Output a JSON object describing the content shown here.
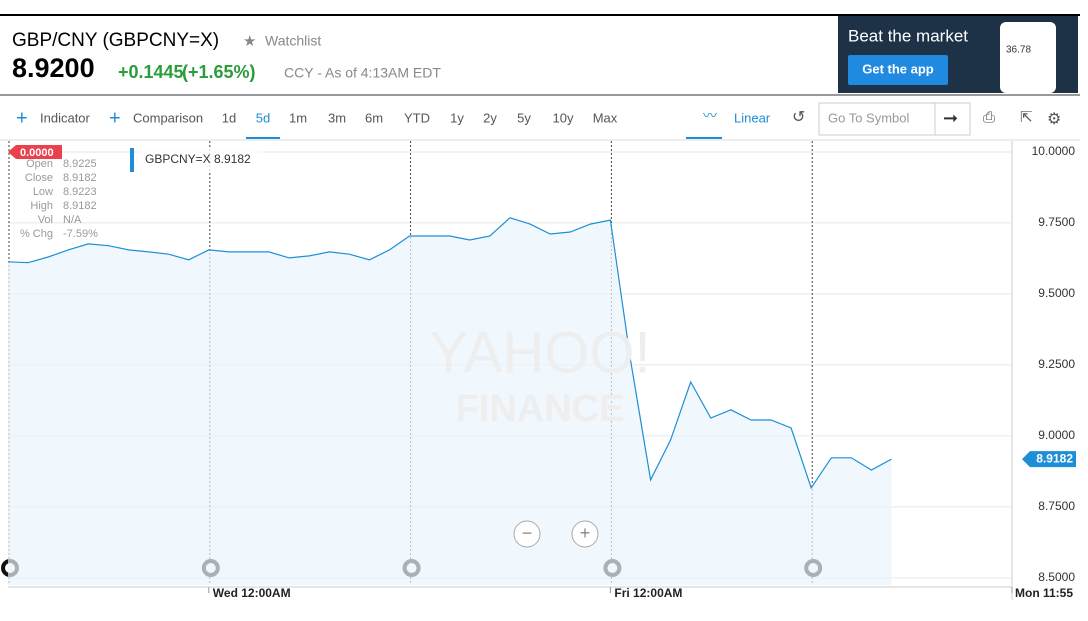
{
  "header": {
    "title": "GBP/CNY (GBPCNY=X)",
    "watchlist": "Watchlist",
    "price": "8.9200",
    "change": "+0.1445",
    "change_pct": "(+1.65%)",
    "meta": "CCY - As of 4:13AM EDT"
  },
  "ad": {
    "headline": "Beat the market",
    "button": "Get the app",
    "phone_value": "36.78"
  },
  "toolbar": {
    "indicator": "Indicator",
    "comparison": "Comparison",
    "ranges": [
      "1d",
      "5d",
      "1m",
      "3m",
      "6m",
      "YTD",
      "1y",
      "2y",
      "5y",
      "10y",
      "Max"
    ],
    "active_range": "5d",
    "scale": "Linear",
    "search_placeholder": "Go To Symbol"
  },
  "crosshair": {
    "tag": "0.0000",
    "labels": [
      "Open",
      "Close",
      "Low",
      "High",
      "Vol",
      "% Chg"
    ],
    "values": [
      "8.9225",
      "8.9182",
      "8.9223",
      "8.9182",
      "N/A",
      "-7.59%"
    ]
  },
  "watermark": [
    "YAHOO!",
    "FINANCE"
  ],
  "chart_data": {
    "type": "line",
    "categories": [
      null,
      null,
      null,
      null,
      null,
      null,
      null,
      null,
      null,
      null,
      "Wed 12:00AM",
      null,
      null,
      null,
      null,
      null,
      null,
      null,
      null,
      null,
      null,
      null,
      null,
      null,
      null,
      null,
      null,
      null,
      null,
      null,
      "Fri 12:00AM",
      null,
      null,
      null,
      null,
      null,
      null,
      null,
      null,
      null,
      null,
      null,
      null,
      null,
      null,
      null,
      null,
      null,
      null,
      null,
      "Mon 11:55"
    ],
    "series": [
      {
        "name": "GBPCNY=X",
        "color": "#1e8fd6",
        "values": [
          9.613,
          9.61,
          9.63,
          9.655,
          9.676,
          9.67,
          9.655,
          9.648,
          9.64,
          9.62,
          9.655,
          9.648,
          9.648,
          9.648,
          9.627,
          9.634,
          9.648,
          9.64,
          9.62,
          9.655,
          9.704,
          9.704,
          9.704,
          9.69,
          9.704,
          9.768,
          9.746,
          9.711,
          9.718,
          9.746,
          9.76,
          9.268,
          8.845,
          8.986,
          9.19,
          9.063,
          9.092,
          9.056,
          9.056,
          9.028,
          8.817,
          8.923,
          8.923,
          8.88,
          8.9182,
          null,
          null,
          null,
          null,
          null,
          null
        ]
      }
    ],
    "last_value": 8.9182,
    "ylim": [
      8.475,
      10.035
    ],
    "yticks": [
      {
        "value": 8.5,
        "label": "8.5000"
      },
      {
        "value": 8.75,
        "label": "8.7500"
      },
      {
        "value": 9,
        "label": "9.0000"
      },
      {
        "value": 9.25,
        "label": "9.2500"
      },
      {
        "value": 9.5,
        "label": "9.5000"
      },
      {
        "value": 9.75,
        "label": "9.7500"
      },
      {
        "value": 10,
        "label": "10.0000"
      }
    ],
    "grid": true
  }
}
